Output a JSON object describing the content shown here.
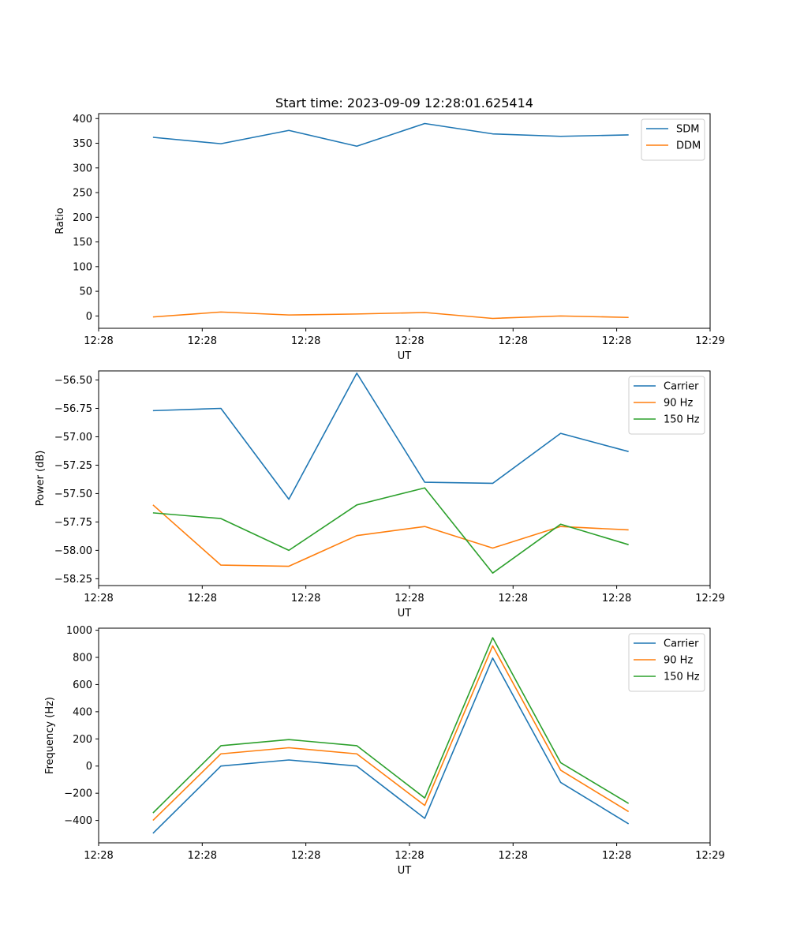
{
  "chart_data": [
    {
      "type": "line",
      "title": "Start time: 2023-09-09 12:28:01.625414",
      "xlabel": "UT",
      "ylabel": "Ratio",
      "x": [
        1,
        2,
        3,
        4,
        5,
        6,
        7,
        8
      ],
      "xlim": [
        0.2,
        9.2
      ],
      "x_ticks": [
        0.2,
        1.725,
        3.25,
        4.775,
        6.3,
        7.825,
        9.2
      ],
      "x_tick_labels": [
        "12:28",
        "12:28",
        "12:28",
        "12:28",
        "12:28",
        "12:28",
        "12:29"
      ],
      "ylim": [
        -25,
        410
      ],
      "y_ticks": [
        0,
        50,
        100,
        150,
        200,
        250,
        300,
        350,
        400
      ],
      "y_tick_labels": [
        "0",
        "50",
        "100",
        "150",
        "200",
        "250",
        "300",
        "350",
        "400"
      ],
      "legend_position": "top-right",
      "series": [
        {
          "name": "SDM",
          "color": "#1f77b4",
          "values": [
            362,
            349,
            376,
            344,
            390,
            369,
            364,
            367
          ]
        },
        {
          "name": "DDM",
          "color": "#ff7f0e",
          "values": [
            -2,
            8,
            2,
            4,
            7,
            -5,
            0,
            -3
          ]
        }
      ]
    },
    {
      "type": "line",
      "title": "",
      "xlabel": "UT",
      "ylabel": "Power (dB)",
      "x": [
        1,
        2,
        3,
        4,
        5,
        6,
        7,
        8
      ],
      "xlim": [
        0.2,
        9.2
      ],
      "x_ticks": [
        0.2,
        1.725,
        3.25,
        4.775,
        6.3,
        7.825,
        9.2
      ],
      "x_tick_labels": [
        "12:28",
        "12:28",
        "12:28",
        "12:28",
        "12:28",
        "12:28",
        "12:29"
      ],
      "ylim": [
        -58.31,
        -56.42
      ],
      "y_ticks": [
        -58.25,
        -58.0,
        -57.75,
        -57.5,
        -57.25,
        -57.0,
        -56.75,
        -56.5
      ],
      "y_tick_labels": [
        "−58.25",
        "−58.00",
        "−57.75",
        "−57.50",
        "−57.25",
        "−57.00",
        "−56.75",
        "−56.50"
      ],
      "legend_position": "top-right",
      "series": [
        {
          "name": "Carrier",
          "color": "#1f77b4",
          "values": [
            -56.77,
            -56.75,
            -57.55,
            -56.44,
            -57.4,
            -57.41,
            -56.97,
            -57.13
          ]
        },
        {
          "name": "90 Hz",
          "color": "#ff7f0e",
          "values": [
            -57.6,
            -58.13,
            -58.14,
            -57.87,
            -57.79,
            -57.98,
            -57.79,
            -57.82
          ]
        },
        {
          "name": "150 Hz",
          "color": "#2ca02c",
          "values": [
            -57.67,
            -57.72,
            -58.0,
            -57.6,
            -57.45,
            -58.2,
            -57.77,
            -57.95
          ]
        }
      ]
    },
    {
      "type": "line",
      "title": "",
      "xlabel": "UT",
      "ylabel": "Frequency (Hz)",
      "x": [
        1,
        2,
        3,
        4,
        5,
        6,
        7,
        8
      ],
      "xlim": [
        0.2,
        9.2
      ],
      "x_ticks": [
        0.2,
        1.725,
        3.25,
        4.775,
        6.3,
        7.825,
        9.2
      ],
      "x_tick_labels": [
        "12:28",
        "12:28",
        "12:28",
        "12:28",
        "12:28",
        "12:28",
        "12:29"
      ],
      "ylim": [
        -565,
        1015
      ],
      "y_ticks": [
        -400,
        -200,
        0,
        200,
        400,
        600,
        800,
        1000
      ],
      "y_tick_labels": [
        "−400",
        "−200",
        "0",
        "200",
        "400",
        "600",
        "800",
        "1000"
      ],
      "legend_position": "top-right",
      "series": [
        {
          "name": "Carrier",
          "color": "#1f77b4",
          "values": [
            -495,
            0,
            45,
            0,
            -385,
            795,
            -120,
            -425
          ]
        },
        {
          "name": "90 Hz",
          "color": "#ff7f0e",
          "values": [
            -400,
            90,
            135,
            90,
            -290,
            885,
            -30,
            -335
          ]
        },
        {
          "name": "150 Hz",
          "color": "#2ca02c",
          "values": [
            -345,
            150,
            195,
            150,
            -235,
            945,
            25,
            -275
          ]
        }
      ]
    }
  ]
}
